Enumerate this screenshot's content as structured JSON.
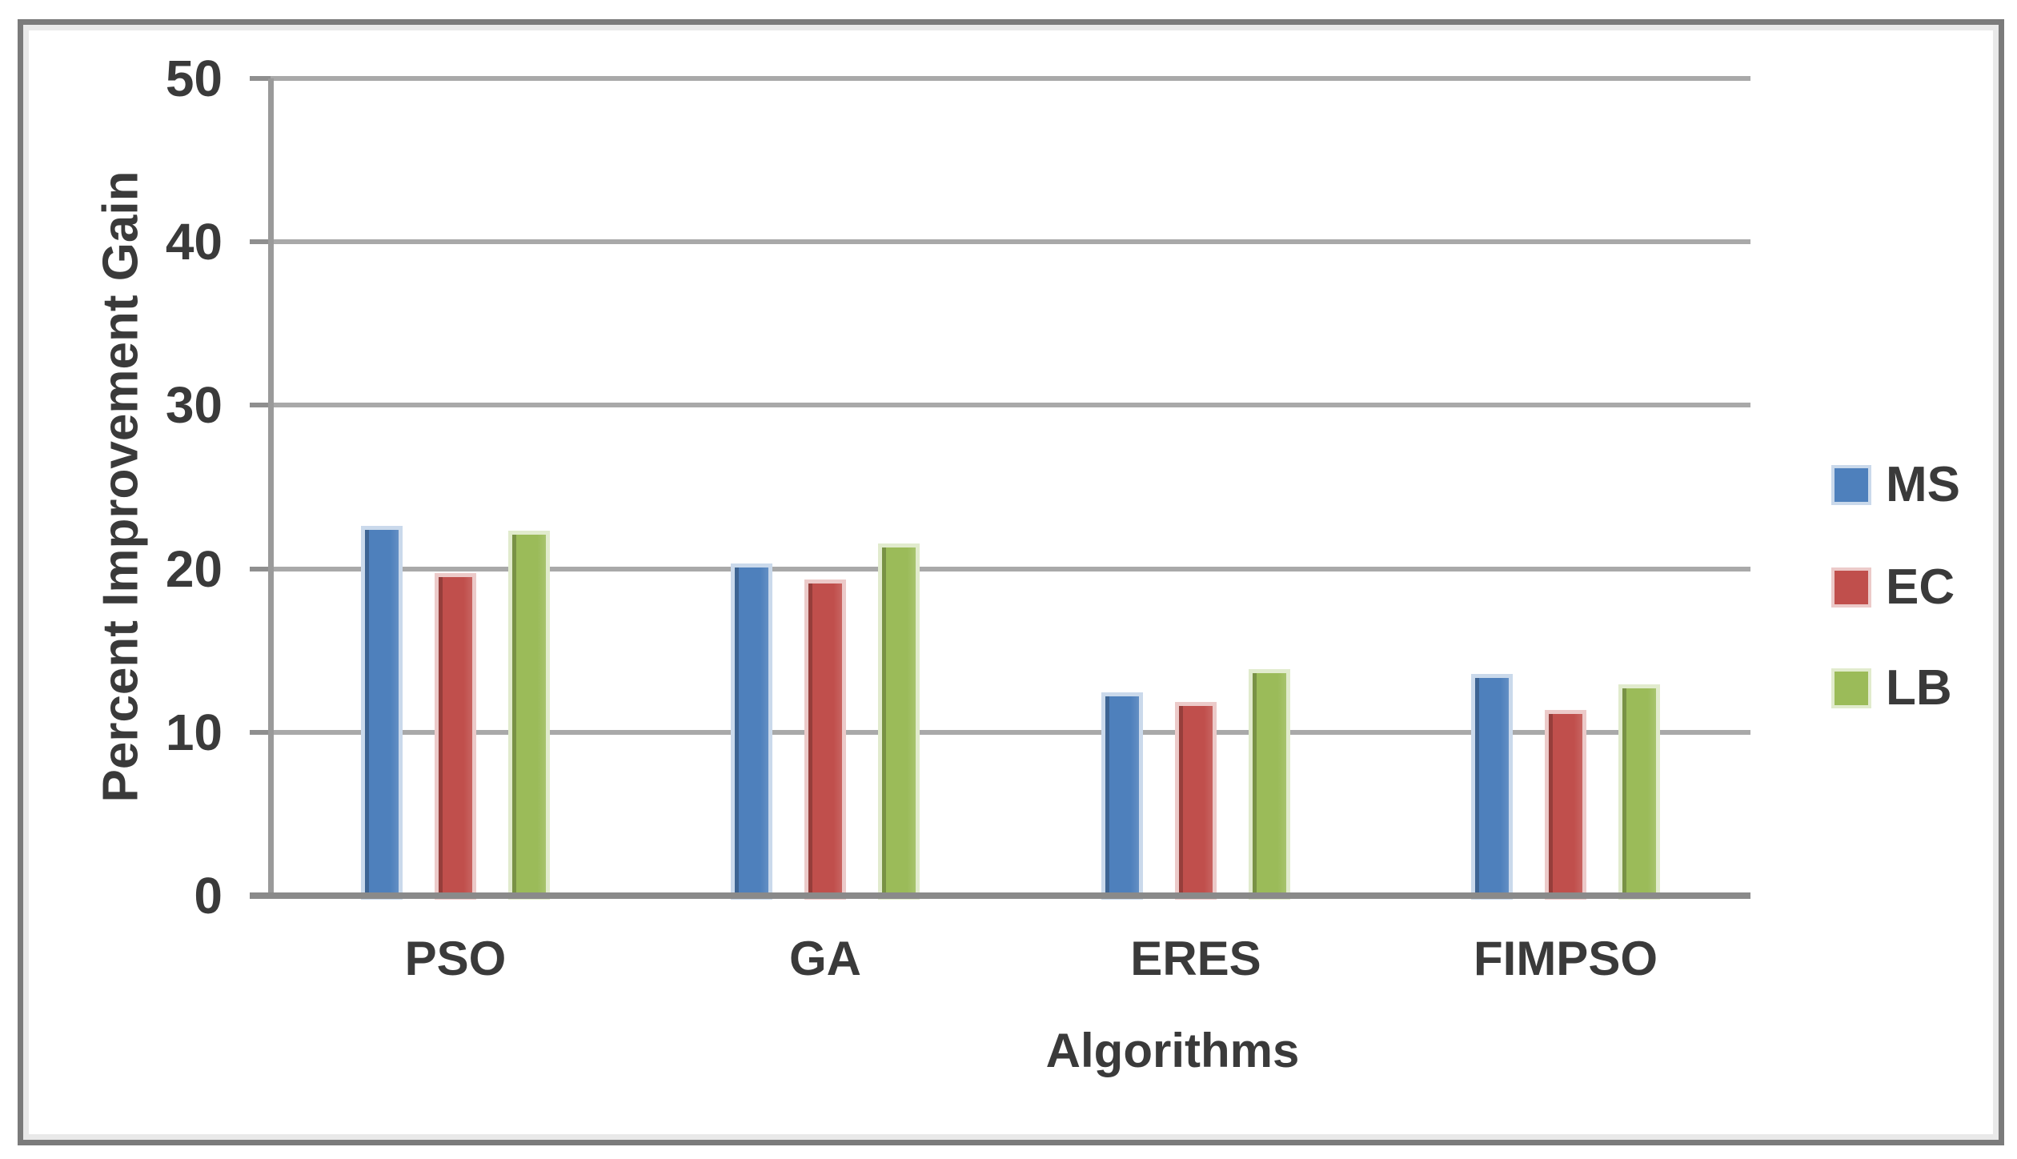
{
  "chart_data": {
    "type": "bar",
    "title": "",
    "categories": [
      "PSO",
      "GA",
      "ERES",
      "FIMPSO"
    ],
    "series": [
      {
        "name": "MS",
        "color": "#4E80BC",
        "values": [
          22.4,
          20.1,
          12.2,
          13.3
        ]
      },
      {
        "name": "EC",
        "color": "#C04F4C",
        "values": [
          19.5,
          19.1,
          11.6,
          11.1
        ]
      },
      {
        "name": "LB",
        "color": "#9BBB59",
        "values": [
          22.1,
          21.3,
          13.6,
          12.7
        ]
      }
    ],
    "xlabel": "Algorithms",
    "ylabel": "Percent Improvement Gain",
    "ylim": [
      0,
      50
    ],
    "yticks": [
      0,
      10,
      20,
      30,
      40,
      50
    ],
    "grid": "horizontal-only",
    "legend_position": "right",
    "legend_entries": [
      "MS",
      "EC",
      "LB"
    ]
  },
  "colors": {
    "gridline": "#A9A9A9",
    "axis_line": "#8A8A8A",
    "frame_border": "#7B7B7B",
    "text": "#3A3A3A",
    "background": "#FFFFFF"
  }
}
